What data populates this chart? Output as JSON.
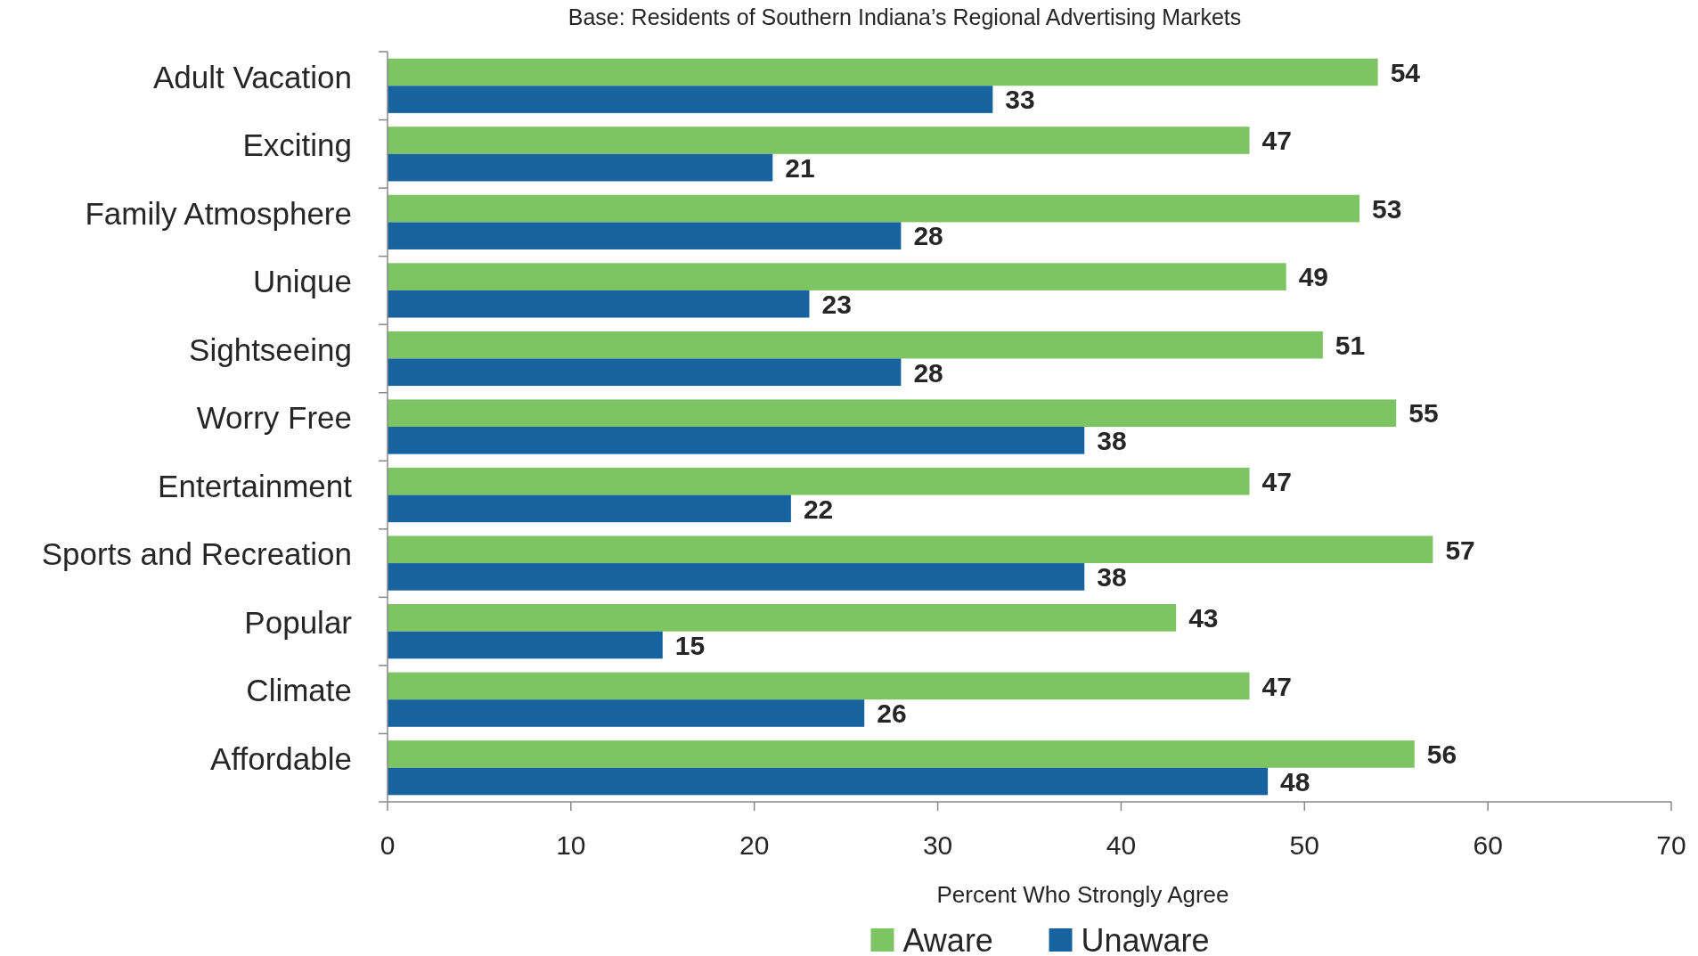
{
  "chart_data": {
    "type": "bar",
    "orientation": "horizontal",
    "title": "Base: Residents of Southern Indiana’s Regional Advertising Markets",
    "xlabel": "Percent Who Strongly Agree",
    "categories": [
      "Adult Vacation",
      "Exciting",
      "Family Atmosphere",
      "Unique",
      "Sightseeing",
      "Worry Free",
      "Entertainment",
      "Sports and Recreation",
      "Popular",
      "Climate",
      "Affordable"
    ],
    "series": [
      {
        "name": "Aware",
        "color": "#7dc462",
        "values": [
          54,
          47,
          53,
          49,
          51,
          55,
          47,
          57,
          43,
          47,
          56
        ]
      },
      {
        "name": "Unaware",
        "color": "#1763a0",
        "values": [
          33,
          21,
          28,
          23,
          28,
          38,
          22,
          38,
          15,
          26,
          48
        ]
      }
    ],
    "xlim": [
      0,
      70
    ],
    "xticks": [
      0,
      10,
      20,
      30,
      40,
      50,
      60,
      70
    ],
    "data_labels": true,
    "legend": "bottom",
    "grid": false
  }
}
